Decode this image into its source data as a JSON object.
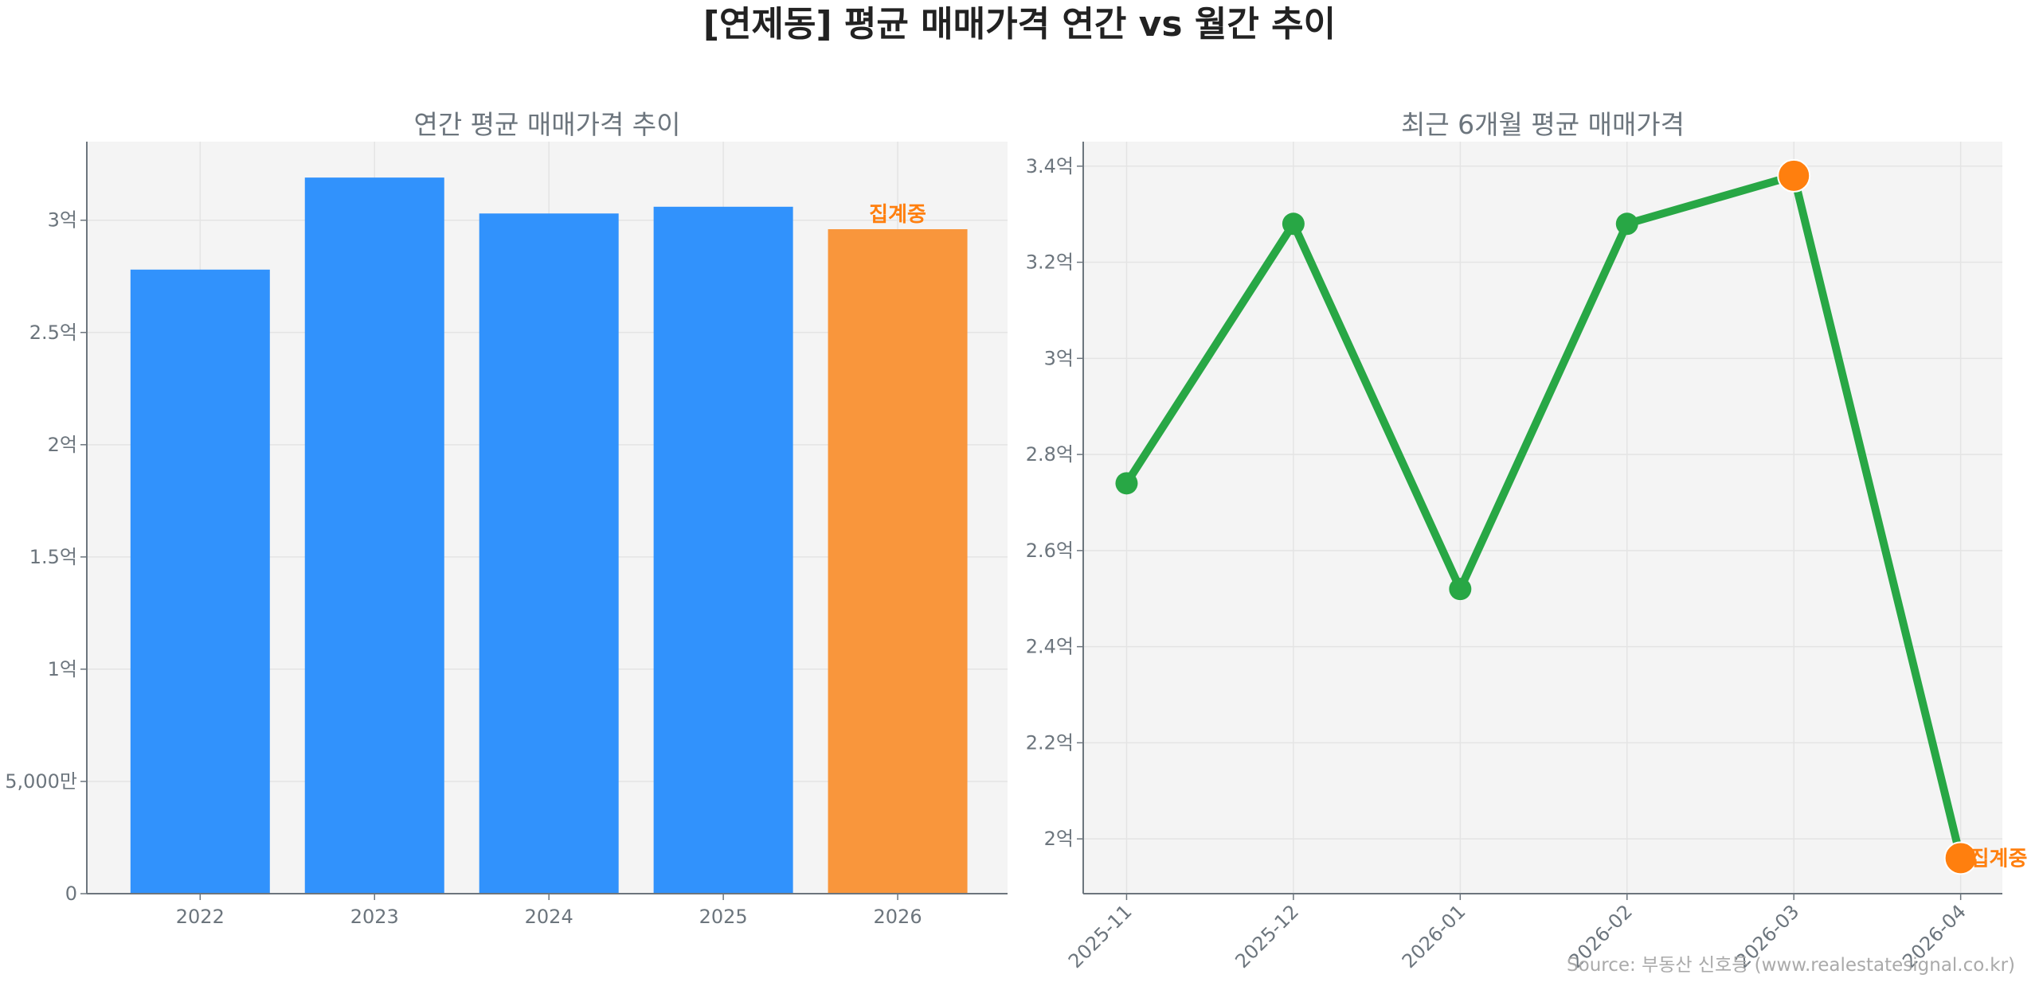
{
  "title": "[연제동] 평균 매매가격 연간 vs 월간 추이",
  "source": "Source: 부동산 신호등 (www.realestatesignal.co.kr)",
  "chart_data": [
    {
      "type": "bar",
      "title": "연간 평균 매매가격 추이",
      "xlabel": "",
      "ylabel": "",
      "categories": [
        "2022",
        "2023",
        "2024",
        "2025",
        "2026"
      ],
      "values": [
        2.78,
        3.19,
        3.03,
        3.06,
        2.96
      ],
      "unit": "억",
      "ylim": [
        0,
        3.35
      ],
      "yticks": [
        0,
        0.5,
        1,
        1.5,
        2,
        2.5,
        3
      ],
      "ytick_labels": [
        "0",
        "5,000만",
        "1억",
        "1.5억",
        "2억",
        "2.5억",
        "3억"
      ],
      "highlight_index": 4,
      "highlight_label": "집계중",
      "grid": true,
      "colors": {
        "bar": "#3192fc",
        "highlight": "#f9963c",
        "label": "#ff7f0e"
      }
    },
    {
      "type": "line",
      "title": "최근 6개월 평균 매매가격",
      "xlabel": "",
      "ylabel": "",
      "x": [
        "2025-11",
        "2025-12",
        "2026-01",
        "2026-02",
        "2026-03",
        "2026-04"
      ],
      "values": [
        2.74,
        3.28,
        2.52,
        3.28,
        3.38,
        1.96
      ],
      "unit": "억",
      "ylim": [
        1.886,
        3.451
      ],
      "yticks": [
        2.0,
        2.2,
        2.4,
        2.6,
        2.8,
        3.0,
        3.2,
        3.4
      ],
      "ytick_labels": [
        "2억",
        "2.2억",
        "2.4억",
        "2.6억",
        "2.8억",
        "3억",
        "3.2억",
        "3.4억"
      ],
      "highlight_indices": [
        4,
        5
      ],
      "highlight_label": "집계중",
      "grid": true,
      "colors": {
        "line": "#28a745",
        "highlight": "#ff7f0e",
        "label": "#ff7f0e"
      }
    }
  ]
}
